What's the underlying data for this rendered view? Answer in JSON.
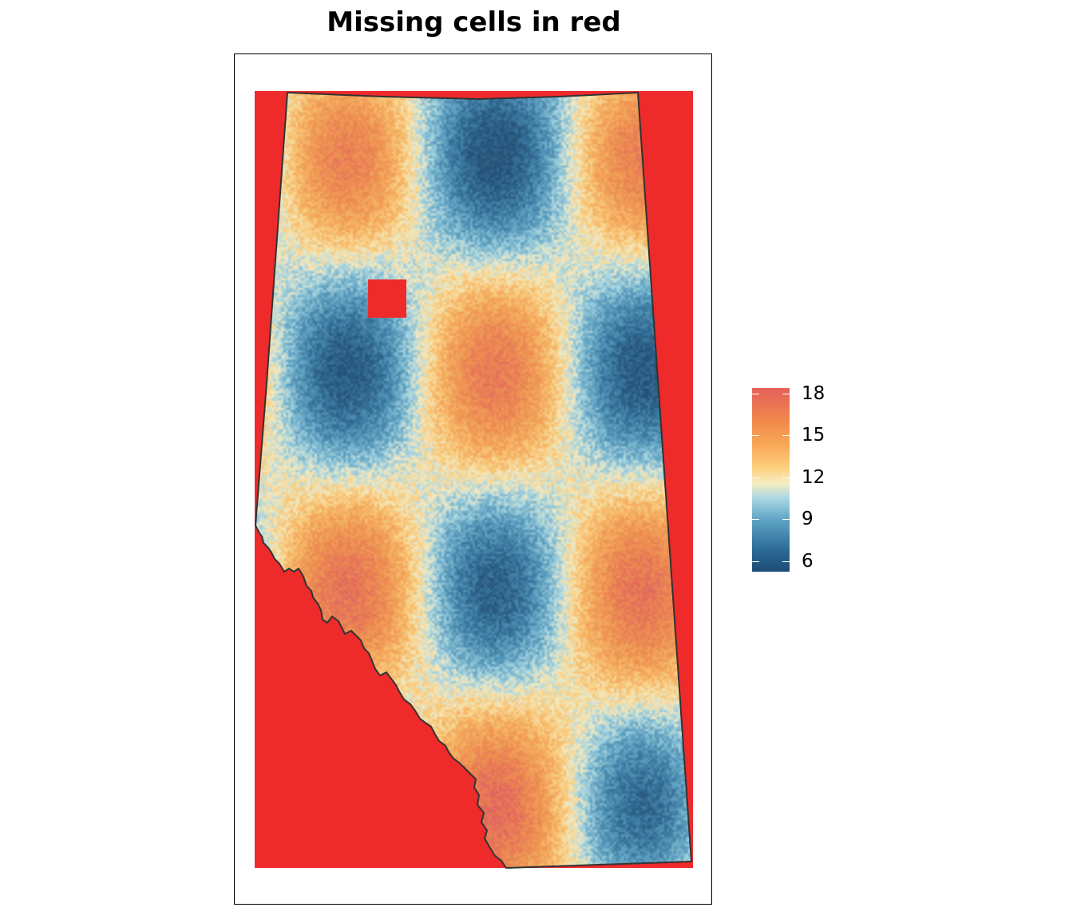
{
  "title": "Missing cells in red",
  "colors": {
    "missing": "#ee2a2b",
    "low": "#1d4b73",
    "mid": "#f6ecc2",
    "high": "#e4605a",
    "boundary": "#333333"
  },
  "legend": {
    "labels": [
      "18",
      "15",
      "12",
      "9",
      "6"
    ],
    "values": [
      18,
      15,
      12,
      9,
      6
    ],
    "min": 5.5,
    "max": 19
  },
  "map": {
    "type": "raster",
    "missing_region_color": "red",
    "icon": "map-raster-icon"
  }
}
